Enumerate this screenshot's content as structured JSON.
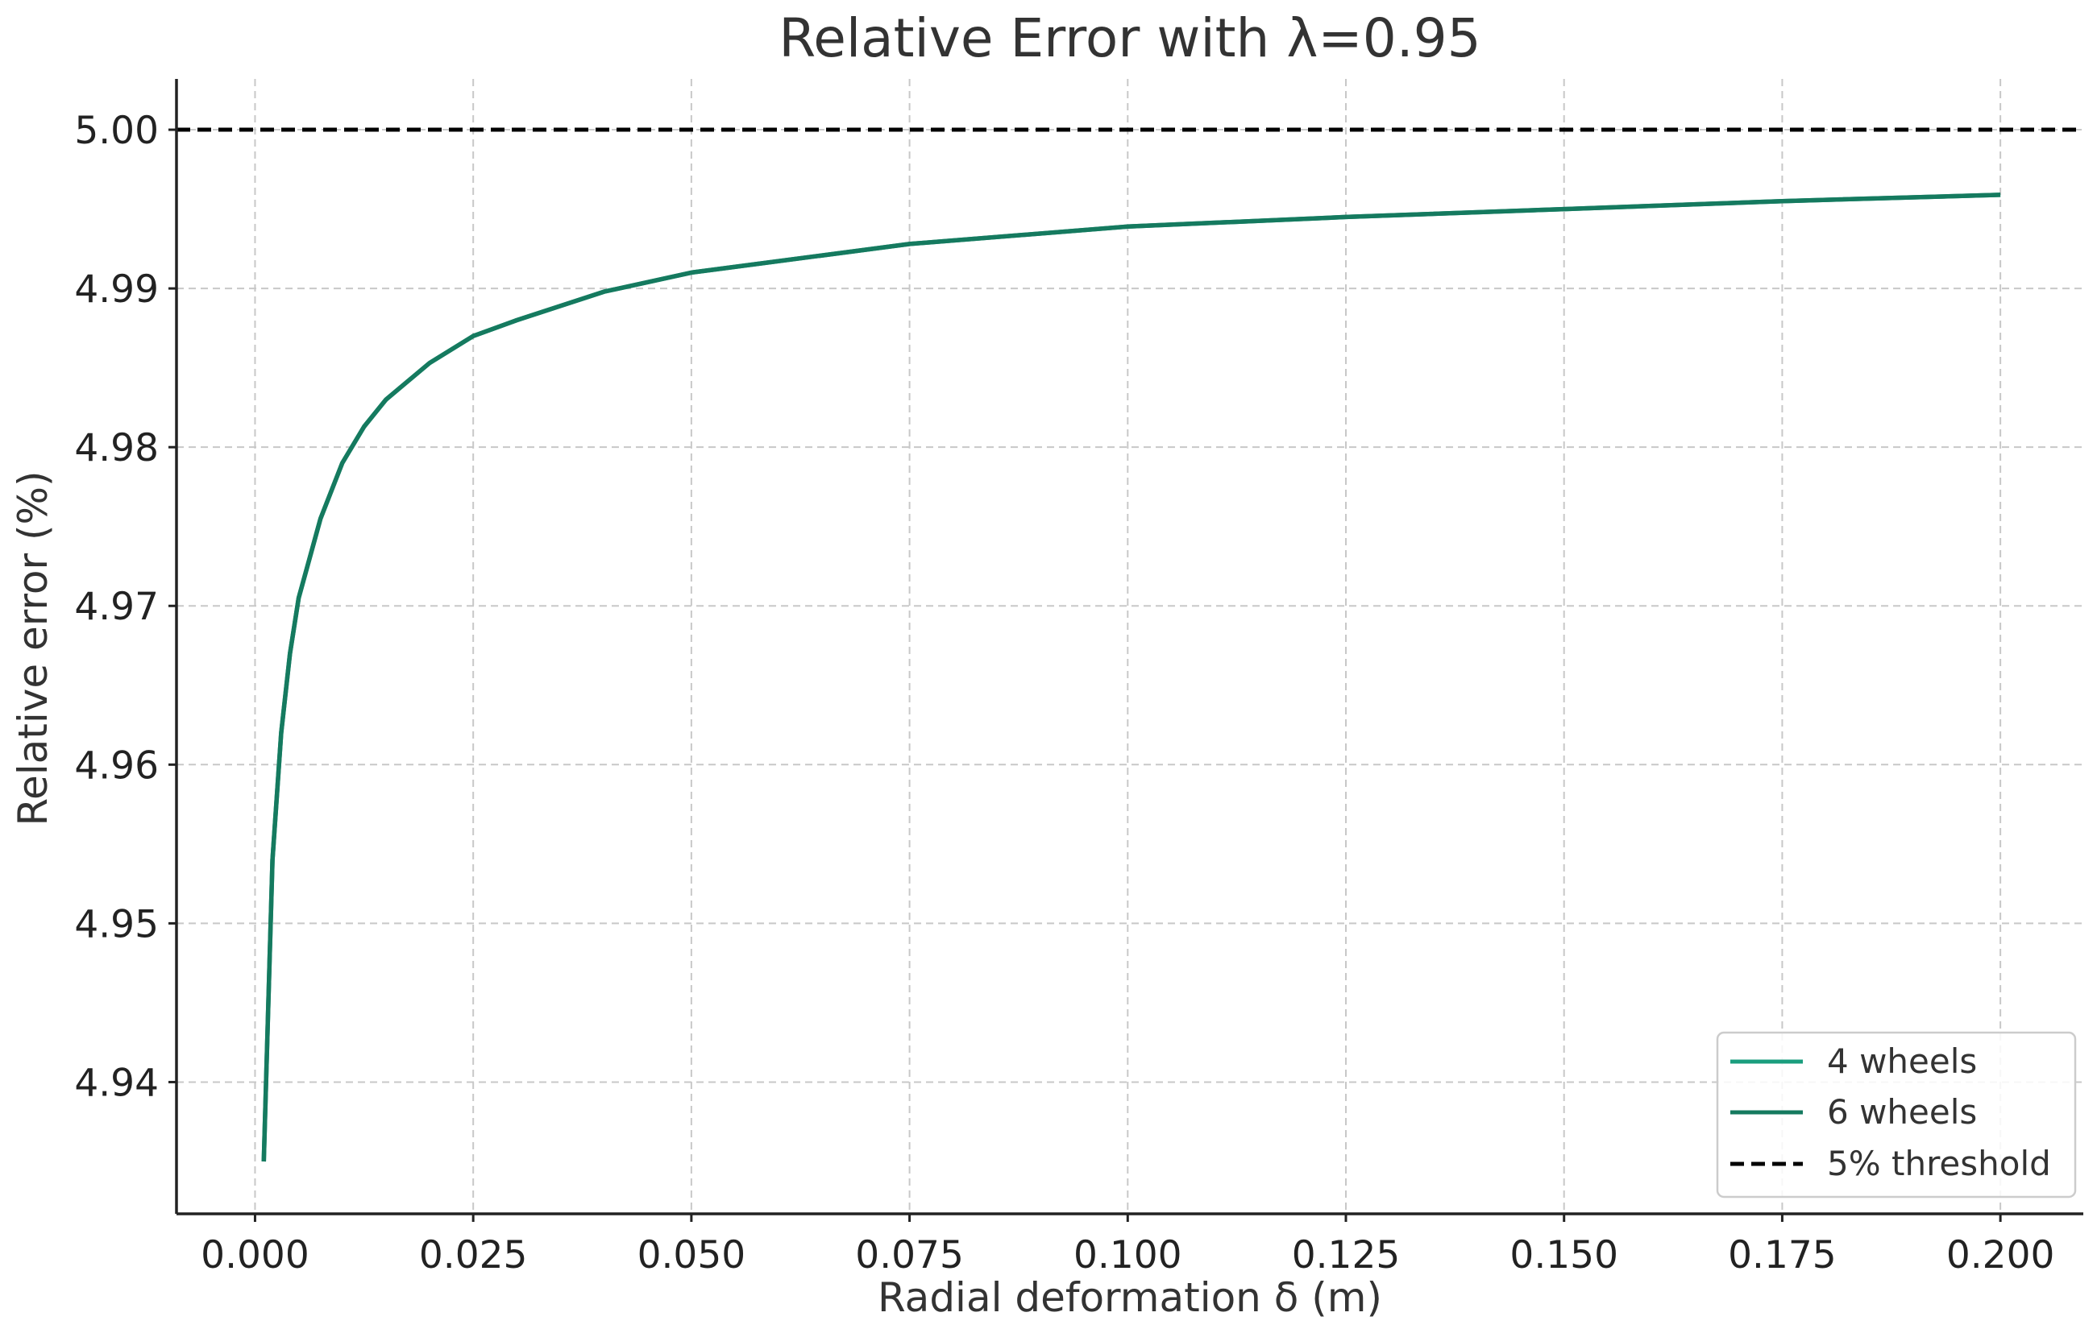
{
  "chart_data": {
    "type": "line",
    "title": "Relative Error with λ=0.95",
    "xlabel": "Radial deformation δ (m)",
    "ylabel": "Relative error (%)",
    "xlim": [
      -0.009,
      0.2095
    ],
    "ylim": [
      4.9317,
      5.0032
    ],
    "xticks": [
      0.0,
      0.025,
      0.05,
      0.075,
      0.1,
      0.125,
      0.15,
      0.175,
      0.2
    ],
    "xtick_labels": [
      "0.000",
      "0.025",
      "0.050",
      "0.075",
      "0.100",
      "0.125",
      "0.150",
      "0.175",
      "0.200"
    ],
    "yticks": [
      4.94,
      4.95,
      4.96,
      4.97,
      4.98,
      4.99,
      5.0
    ],
    "ytick_labels": [
      "4.94",
      "4.95",
      "4.96",
      "4.97",
      "4.98",
      "4.99",
      "5.00"
    ],
    "grid": true,
    "legend_position": "lower-right",
    "series": [
      {
        "name": "4 wheels",
        "color": "#1a9e7e",
        "style": "solid",
        "x": [
          0.001,
          0.002,
          0.003,
          0.004,
          0.005,
          0.0075,
          0.01,
          0.0125,
          0.015,
          0.02,
          0.025,
          0.03,
          0.04,
          0.05,
          0.075,
          0.1,
          0.125,
          0.15,
          0.175,
          0.2
        ],
        "y": [
          4.935,
          4.954,
          4.962,
          4.967,
          4.9705,
          4.9755,
          4.979,
          4.9813,
          4.983,
          4.9853,
          4.987,
          4.988,
          4.9898,
          4.991,
          4.9928,
          4.9939,
          4.9945,
          4.995,
          4.9955,
          4.9959
        ]
      },
      {
        "name": "6 wheels",
        "color": "#157a5f",
        "style": "solid",
        "x": [
          0.001,
          0.002,
          0.003,
          0.004,
          0.005,
          0.0075,
          0.01,
          0.0125,
          0.015,
          0.02,
          0.025,
          0.03,
          0.04,
          0.05,
          0.075,
          0.1,
          0.125,
          0.15,
          0.175,
          0.2
        ],
        "y": [
          4.935,
          4.954,
          4.962,
          4.967,
          4.9705,
          4.9755,
          4.979,
          4.9813,
          4.983,
          4.9853,
          4.987,
          4.988,
          4.9898,
          4.991,
          4.9928,
          4.9939,
          4.9945,
          4.995,
          4.9955,
          4.9959
        ]
      },
      {
        "name": "5% threshold",
        "color": "#000000",
        "style": "dashed",
        "constant_y": 5.0
      }
    ]
  }
}
